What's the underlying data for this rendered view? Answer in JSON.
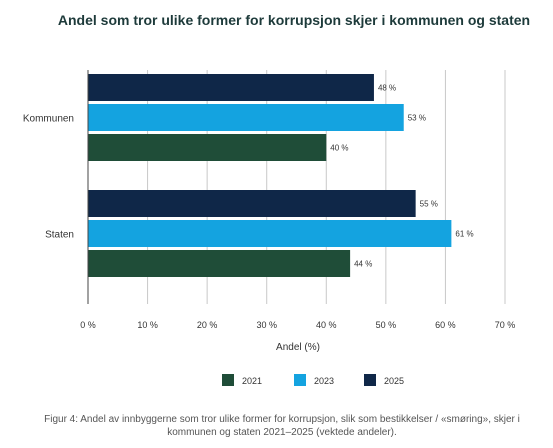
{
  "colors": {
    "2021": "#1f4d38",
    "2023": "#14a3e0",
    "2025": "#0f2748",
    "title": "#1d3a3a",
    "grid": "#c8c8c8"
  },
  "caption": "Figur 4: Andel av innbyggerne som tror ulike former for korrupsjon, slik som bestikkelser / «smøring», skjer i kommunen og staten 2021–2025 (vektede andeler).",
  "chart_data": {
    "type": "bar",
    "orientation": "horizontal",
    "title": "Andel som tror ulike former for korrupsjon skjer i kommunen og staten",
    "xlabel": "Andel (%)",
    "ylabel": "",
    "xlim": [
      0,
      70
    ],
    "x_ticks": [
      "0 %",
      "10 %",
      "20 %",
      "30 %",
      "40 %",
      "50 %",
      "60 %",
      "70 %"
    ],
    "grid": true,
    "legend_position": "bottom",
    "categories": [
      "Kommunen",
      "Staten"
    ],
    "series": [
      {
        "name": "2025",
        "values": [
          48,
          55
        ],
        "labels": [
          "48 %",
          "55 %"
        ]
      },
      {
        "name": "2023",
        "values": [
          53,
          61
        ],
        "labels": [
          "53 %",
          "61 %"
        ]
      },
      {
        "name": "2021",
        "values": [
          40,
          44
        ],
        "labels": [
          "40 %",
          "44 %"
        ]
      }
    ],
    "legend": [
      "2021",
      "2023",
      "2025"
    ]
  }
}
